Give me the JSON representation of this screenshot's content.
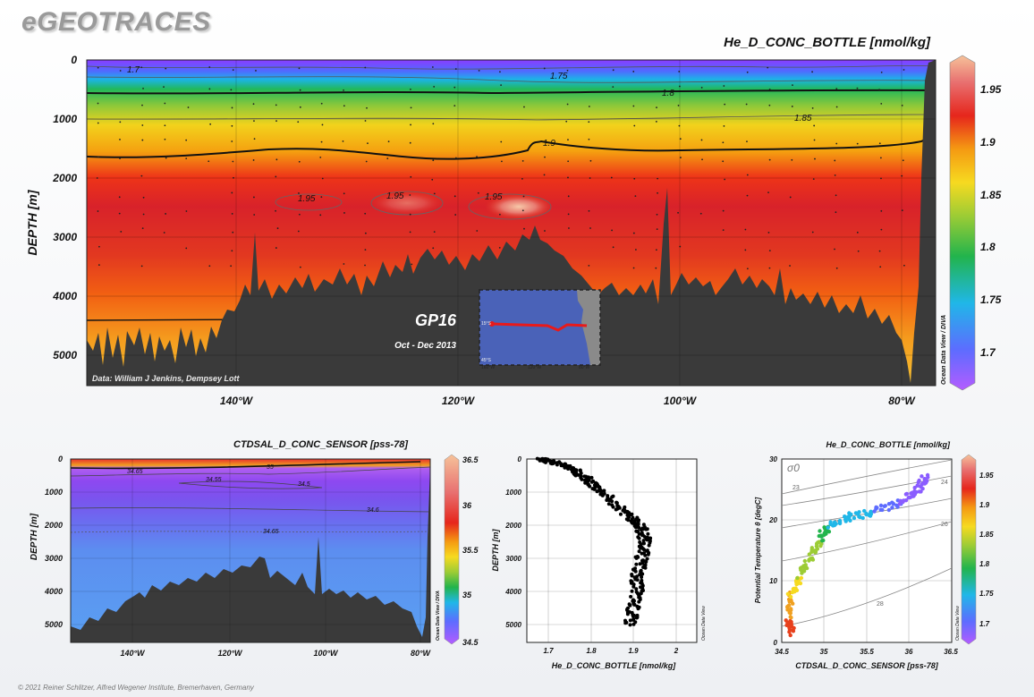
{
  "brand": "eGEOTRACES",
  "copyright": "© 2021 Reiner Schlitzer, Alfred Wegener Institute, Bremerhaven, Germany",
  "chart_data": [
    {
      "id": "main-section",
      "type": "heatmap",
      "title": "He_D_CONC_BOTTLE [nmol/kg]",
      "ylabel": "DEPTH [m]",
      "y_ticks": [
        "0",
        "1000",
        "2000",
        "3000",
        "4000",
        "5000"
      ],
      "x_ticks": [
        "140°W",
        "120°W",
        "100°W",
        "80°W"
      ],
      "ylim": [
        0,
        5500
      ],
      "xlim": [
        -153.5,
        -77
      ],
      "colorbar": {
        "range": [
          1.67,
          1.98
        ],
        "ticks": [
          "1.7",
          "1.75",
          "1.8",
          "1.85",
          "1.9",
          "1.95"
        ]
      },
      "contours": [
        {
          "label": "1.7",
          "depth": 120
        },
        {
          "label": "1.75",
          "depth": 280
        },
        {
          "label": "1.8",
          "depth": 550
        },
        {
          "label": "1.85",
          "depth": 950
        },
        {
          "label": "1.9",
          "depth": 1550
        },
        {
          "label": "1.95",
          "depth": 2450
        },
        {
          "label": "1.95",
          "depth": 2450
        },
        {
          "label": "1.95",
          "depth": 2450
        }
      ],
      "credit": "Data: William J Jenkins, Dempsey Lott",
      "vertical_label": "Ocean Data View / DIVA",
      "inset": {
        "cruise": "GP16",
        "dates": "Oct - Dec 2013",
        "lat_ticks": [
          "15°S",
          "45°S"
        ],
        "lon_ticks": [
          "160°W",
          "120°W",
          "80°W"
        ]
      }
    },
    {
      "id": "salinity-section",
      "type": "heatmap",
      "title": "CTDSAL_D_CONC_SENSOR [pss-78]",
      "ylabel": "DEPTH [m]",
      "y_ticks": [
        "0",
        "1000",
        "2000",
        "3000",
        "4000",
        "5000"
      ],
      "x_ticks": [
        "140°W",
        "120°W",
        "100°W",
        "80°W"
      ],
      "ylim": [
        0,
        5500
      ],
      "xlim": [
        -153.5,
        -77
      ],
      "colorbar": {
        "range": [
          34.5,
          36.5
        ],
        "ticks": [
          "34.5",
          "35",
          "35.5",
          "36",
          "36.5"
        ]
      },
      "contours": [
        {
          "label": "35",
          "depth": 200
        },
        {
          "label": "34.65",
          "depth": 250
        },
        {
          "label": "34.55",
          "depth": 450
        },
        {
          "label": "34.5",
          "depth": 750
        },
        {
          "label": "34.6",
          "depth": 1550
        },
        {
          "label": "34.65",
          "depth": 2200
        }
      ],
      "vertical_label": "Ocean Data View / DIVA"
    },
    {
      "id": "profile",
      "type": "scatter",
      "xlabel": "He_D_CONC_BOTTLE [nmol/kg]",
      "ylabel": "DEPTH [m]",
      "x_ticks": [
        "1.7",
        "1.8",
        "1.9",
        "2"
      ],
      "y_ticks": [
        "0",
        "1000",
        "2000",
        "3000",
        "4000",
        "5000"
      ],
      "xlim": [
        1.65,
        2.05
      ],
      "ylim": [
        0,
        5500
      ],
      "vertical_label": "Ocean Data View",
      "trend": [
        [
          1.68,
          0
        ],
        [
          1.7,
          60
        ],
        [
          1.74,
          200
        ],
        [
          1.77,
          400
        ],
        [
          1.8,
          700
        ],
        [
          1.83,
          1000
        ],
        [
          1.87,
          1500
        ],
        [
          1.9,
          1800
        ],
        [
          1.92,
          2100
        ],
        [
          1.93,
          2500
        ],
        [
          1.92,
          3000
        ],
        [
          1.91,
          3500
        ],
        [
          1.91,
          4000
        ],
        [
          1.9,
          4500
        ],
        [
          1.895,
          5000
        ]
      ]
    },
    {
      "id": "ts-diagram",
      "type": "scatter",
      "title": "He_D_CONC_BOTTLE [nmol/kg]",
      "xlabel": "CTDSAL_D_CONC_SENSOR [pss-78]",
      "ylabel": "Potential Temperature θ [degC]",
      "x_ticks": [
        "34.5",
        "35",
        "35.5",
        "36",
        "36.5"
      ],
      "y_ticks": [
        "0",
        "10",
        "20",
        "30"
      ],
      "xlim": [
        34.5,
        36.5
      ],
      "ylim": [
        0,
        30
      ],
      "sigma_label": "σ0",
      "isopycnals": [
        "23",
        "24",
        "25",
        "26",
        "28"
      ],
      "colorbar": {
        "range": [
          1.67,
          1.98
        ],
        "ticks": [
          "1.7",
          "1.75",
          "1.8",
          "1.85",
          "1.9",
          "1.95"
        ]
      },
      "vertical_label": "Ocean Data View",
      "trend": [
        [
          34.62,
          1.5
        ],
        [
          34.58,
          4
        ],
        [
          34.6,
          8
        ],
        [
          34.72,
          11
        ],
        [
          34.85,
          14
        ],
        [
          34.95,
          17
        ],
        [
          35.05,
          19
        ],
        [
          35.3,
          20.5
        ],
        [
          35.6,
          21.5
        ],
        [
          35.9,
          23
        ],
        [
          36.1,
          25
        ],
        [
          36.2,
          27
        ]
      ]
    }
  ]
}
